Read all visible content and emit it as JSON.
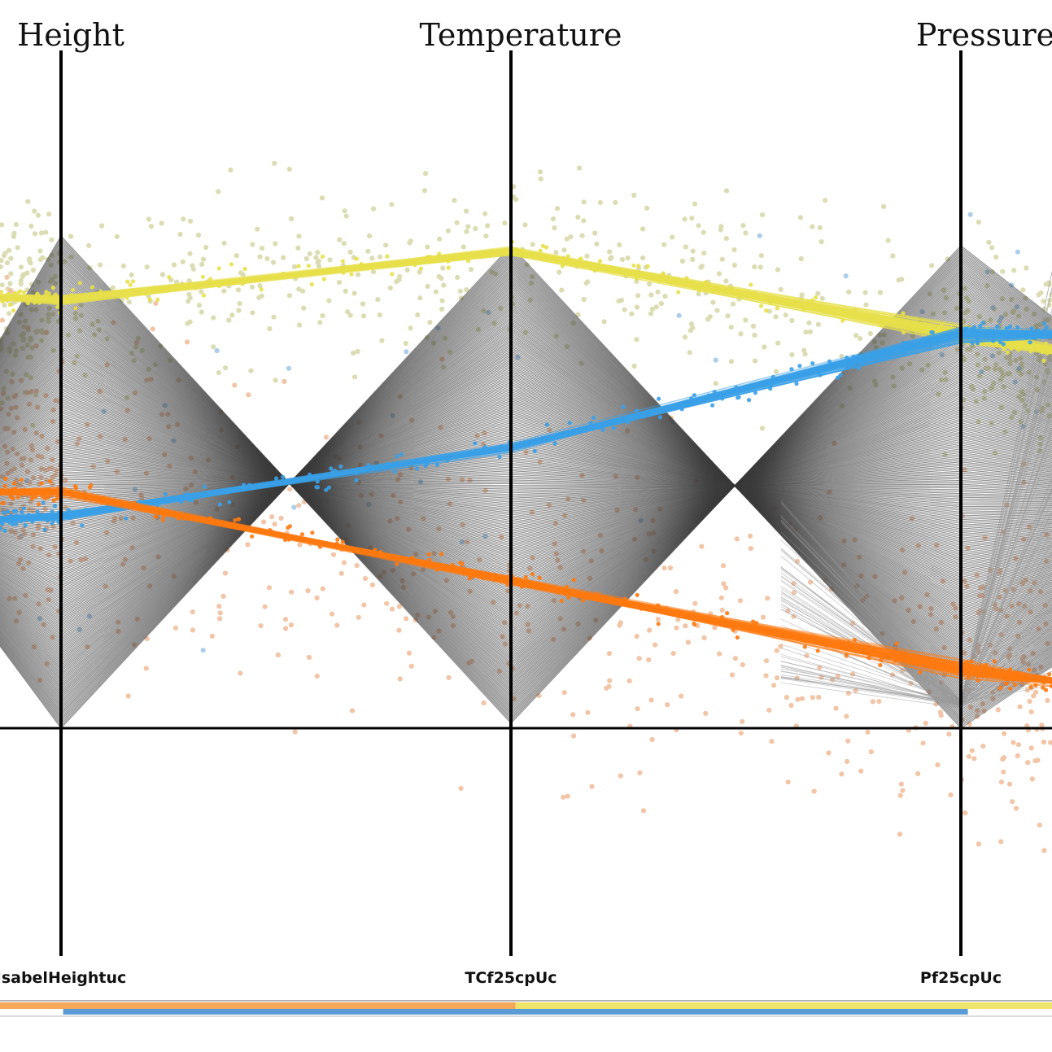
{
  "chart_data": {
    "type": "parallel-coordinates",
    "axes": [
      {
        "title": "Height",
        "id_label": "IsabelHeightuc"
      },
      {
        "title": "Temperature",
        "id_label": "TCf25cpUc"
      },
      {
        "title": "Pressure",
        "id_label": "Pf25cpUc"
      }
    ],
    "value_range": [
      0,
      1
    ],
    "background_band": {
      "color": "#3c3c3c",
      "rows": [
        {
          "left": [
            0.3,
            0.62
          ],
          "height": [
            0.0,
            1.0
          ],
          "temperature": [
            0.01,
            0.98
          ],
          "pressure": [
            0.0,
            0.98
          ],
          "right": [
            0.2,
            0.75
          ]
        }
      ]
    },
    "clusters": [
      {
        "color": "#e8e04a",
        "scatter_color": "#d6d6a6",
        "height": 0.87,
        "temperature": 0.97,
        "pressure": 0.8,
        "right": 0.75,
        "left": 0.88
      },
      {
        "color": "#3aa0e8",
        "scatter_color": "#9ec6e6",
        "height": 0.43,
        "temperature": 0.57,
        "pressure": 0.8,
        "right": 0.8,
        "left": 0.42
      },
      {
        "color": "#ff7a10",
        "scatter_color": "#f0bb98",
        "height": 0.48,
        "temperature": 0.3,
        "pressure": 0.12,
        "right": 0.08,
        "left": 0.48
      }
    ],
    "bottom_bar": {
      "segments": [
        {
          "color": "#f6a75a",
          "from": 0.0,
          "to": 0.49
        },
        {
          "color": "#eee46a",
          "from": 0.49,
          "to": 1.0
        },
        {
          "color": "#5b9bd5",
          "from": 0.06,
          "to": 0.92
        }
      ]
    }
  }
}
